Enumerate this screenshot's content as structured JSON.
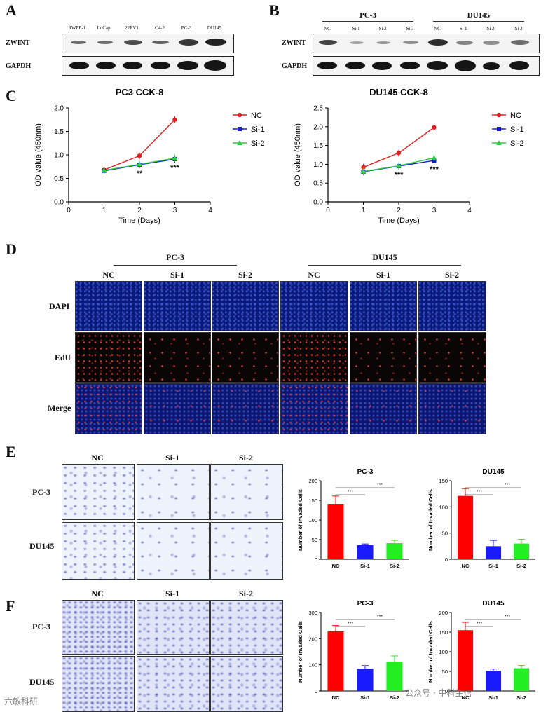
{
  "panel_labels": {
    "a": "A",
    "b": "B",
    "c": "C",
    "d": "D",
    "e": "E",
    "f": "F"
  },
  "blot_a": {
    "lanes": [
      "RWPE-1",
      "LnCap",
      "22RV1",
      "C4-2",
      "PC-3",
      "DU145"
    ],
    "rows": [
      "ZWINT",
      "GAPDH"
    ]
  },
  "blot_b": {
    "group1": "PC-3",
    "group2": "DU145",
    "lanes": [
      "NC",
      "Si 1",
      "Si 2",
      "Si 3",
      "NC",
      "Si 1",
      "Si 2",
      "Si 3"
    ],
    "rows": [
      "ZWINT",
      "GAPDH"
    ]
  },
  "chart_data": [
    {
      "type": "line",
      "title": "PC3 CCK-8",
      "xlabel": "Time (Days)",
      "ylabel": "OD value (450nm)",
      "xlim": [
        0,
        4
      ],
      "ylim": [
        0,
        2.0
      ],
      "xticks": [
        "0",
        "1",
        "2",
        "3",
        "4"
      ],
      "yticks": [
        "0.0",
        "0.5",
        "1.0",
        "1.5",
        "2.0"
      ],
      "x": [
        1,
        2,
        3
      ],
      "series": [
        {
          "name": "NC",
          "color": "#e02020",
          "marker": "circle",
          "values": [
            0.68,
            0.98,
            1.75
          ]
        },
        {
          "name": "Si-1",
          "color": "#1a1ad0",
          "marker": "square",
          "values": [
            0.66,
            0.79,
            0.91
          ]
        },
        {
          "name": "Si-2",
          "color": "#2ecc40",
          "marker": "triangle",
          "values": [
            0.67,
            0.8,
            0.93
          ]
        }
      ],
      "annotations": [
        {
          "x": 2,
          "text": "**"
        },
        {
          "x": 3,
          "text": "***"
        }
      ],
      "legend": "top-right"
    },
    {
      "type": "line",
      "title": "DU145 CCK-8",
      "xlabel": "Time (Days)",
      "ylabel": "OD value (450nm)",
      "xlim": [
        0,
        4
      ],
      "ylim": [
        0,
        2.5
      ],
      "xticks": [
        "0",
        "1",
        "2",
        "3",
        "4"
      ],
      "yticks": [
        "0.0",
        "0.5",
        "1.0",
        "1.5",
        "2.0",
        "2.5"
      ],
      "x": [
        1,
        2,
        3
      ],
      "series": [
        {
          "name": "NC",
          "color": "#e02020",
          "marker": "circle",
          "values": [
            0.92,
            1.3,
            1.98
          ]
        },
        {
          "name": "Si-1",
          "color": "#1a1ad0",
          "marker": "square",
          "values": [
            0.8,
            0.95,
            1.1
          ]
        },
        {
          "name": "Si-2",
          "color": "#2ecc40",
          "marker": "triangle",
          "values": [
            0.81,
            0.96,
            1.17
          ]
        }
      ],
      "annotations": [
        {
          "x": 2,
          "text": "***"
        },
        {
          "x": 3,
          "text": "***"
        }
      ],
      "legend": "top-right"
    },
    {
      "type": "bar",
      "title": "PC-3",
      "ylabel": "Number of Invaded Cells",
      "categories": [
        "NC",
        "Si-1",
        "Si-2"
      ],
      "values": [
        141,
        36,
        41
      ],
      "errors": [
        20,
        3,
        7
      ],
      "colors": [
        "#ff0000",
        "#1a1aff",
        "#22ee22"
      ],
      "ylim": [
        0,
        200
      ],
      "yticks": [
        "0",
        "50",
        "100",
        "150",
        "200"
      ],
      "significance": [
        "***",
        "***"
      ]
    },
    {
      "type": "bar",
      "title": "DU145",
      "ylabel": "Number of Invaded Cells",
      "categories": [
        "NC",
        "Si-1",
        "Si-2"
      ],
      "values": [
        121,
        25,
        30
      ],
      "errors": [
        14,
        11,
        8
      ],
      "colors": [
        "#ff0000",
        "#1a1aff",
        "#22ee22"
      ],
      "ylim": [
        0,
        150
      ],
      "yticks": [
        "0",
        "50",
        "100",
        "150"
      ],
      "significance": [
        "***",
        "***"
      ]
    },
    {
      "type": "bar",
      "title": "PC-3",
      "ylabel": "Number of Invaded Cells",
      "categories": [
        "NC",
        "Si-1",
        "Si-2"
      ],
      "values": [
        228,
        85,
        112
      ],
      "errors": [
        22,
        12,
        22
      ],
      "colors": [
        "#ff0000",
        "#1a1aff",
        "#22ee22"
      ],
      "ylim": [
        0,
        300
      ],
      "yticks": [
        "0",
        "100",
        "200",
        "300"
      ],
      "significance": [
        "***",
        "***"
      ]
    },
    {
      "type": "bar",
      "title": "DU145",
      "ylabel": "Number of Invaded Cells",
      "categories": [
        "NC",
        "Si-1",
        "Si-2"
      ],
      "values": [
        155,
        51,
        58
      ],
      "errors": [
        20,
        5,
        7
      ],
      "colors": [
        "#ff0000",
        "#1a1aff",
        "#22ee22"
      ],
      "ylim": [
        0,
        200
      ],
      "yticks": [
        "0",
        "50",
        "100",
        "150",
        "200"
      ],
      "significance": [
        "***",
        "***"
      ]
    }
  ],
  "panel_d": {
    "group1": "PC-3",
    "group2": "DU145",
    "columns": [
      "NC",
      "Si-1",
      "Si-2",
      "NC",
      "Si-1",
      "Si-2"
    ],
    "rows": [
      "DAPI",
      "EdU",
      "Merge"
    ]
  },
  "panel_e": {
    "columns": [
      "NC",
      "Si-1",
      "Si-2"
    ],
    "rows": [
      "PC-3",
      "DU145"
    ]
  },
  "panel_f": {
    "columns": [
      "NC",
      "Si-1",
      "Si-2"
    ],
    "rows": [
      "PC-3",
      "DU145"
    ]
  },
  "watermarks": {
    "left": "六敏科研",
    "right": "公众号 · 中科生信"
  }
}
